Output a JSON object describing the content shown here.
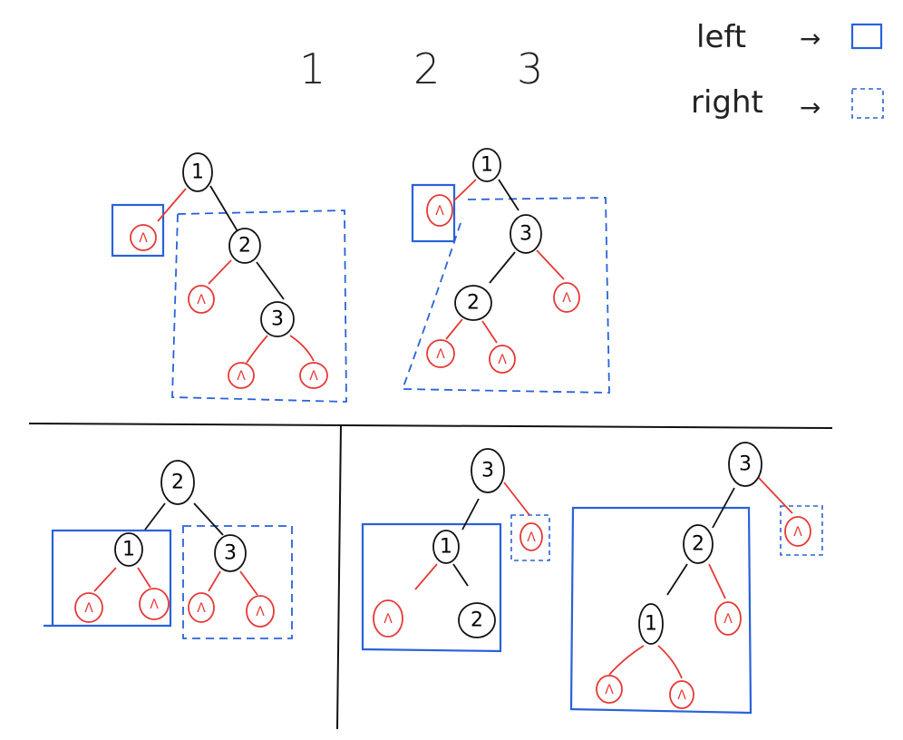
{
  "header": {
    "numbers": [
      "1",
      "2",
      "3"
    ]
  },
  "legend": {
    "left_label": "left",
    "right_label": "right",
    "arrow": "→",
    "left_style": "solid box",
    "right_style": "dashed box"
  },
  "colors": {
    "node_stroke": "#111111",
    "nil_stroke": "#e53935",
    "left_box": "#2962d9",
    "right_box": "#2962d9",
    "divider": "#111111"
  },
  "nil_symbol": "Λ",
  "trees": [
    {
      "id": "tree-1",
      "root": "1",
      "left_subtree": "Λ",
      "right_subtree": "2 → (Λ, 3 → (Λ, Λ))"
    },
    {
      "id": "tree-2",
      "root": "1",
      "left_subtree": "Λ",
      "right_subtree": "3 → (2 → (Λ, Λ), Λ)"
    },
    {
      "id": "tree-3",
      "root": "2",
      "left_subtree": "1 → (Λ, Λ)",
      "right_subtree": "3 → (Λ, Λ)"
    },
    {
      "id": "tree-4",
      "root": "3",
      "left_subtree": "1 → (Λ, 2)",
      "right_subtree": "Λ"
    },
    {
      "id": "tree-5",
      "root": "3",
      "left_subtree": "2 → (1 → (Λ, Λ), Λ)",
      "right_subtree": "Λ"
    }
  ],
  "node_labels": {
    "t1": [
      "1",
      "2",
      "3"
    ],
    "t2": [
      "1",
      "3",
      "2"
    ],
    "t3": [
      "2",
      "1",
      "3"
    ],
    "t4": [
      "3",
      "1",
      "2"
    ],
    "t5": [
      "3",
      "2",
      "1"
    ]
  }
}
